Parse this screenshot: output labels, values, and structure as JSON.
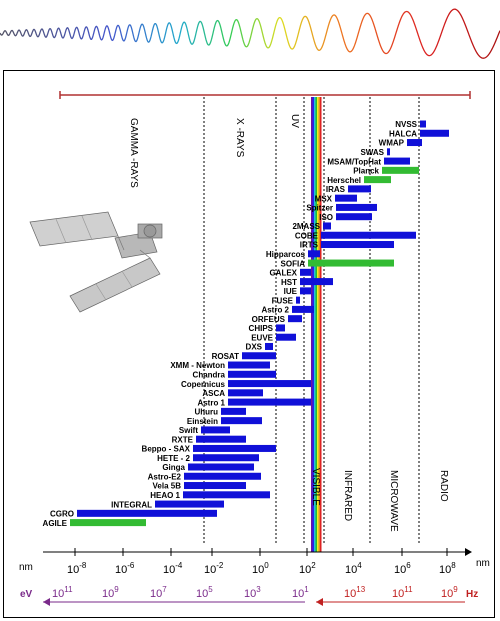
{
  "regions": {
    "gamma": "GAMMA -RAYS",
    "xray": "X -RAYS",
    "uv": "UV",
    "visible": "VISIBLE",
    "infrared": "INFRARED",
    "microwave": "MICROWAVE",
    "radio": "RADIO"
  },
  "missions": [
    {
      "name": "NVSS",
      "kind": "blue"
    },
    {
      "name": "HALCA",
      "kind": "blue"
    },
    {
      "name": "WMAP",
      "kind": "blue"
    },
    {
      "name": "SWAS",
      "kind": "blue"
    },
    {
      "name": "MSAM/TopHat",
      "kind": "blue"
    },
    {
      "name": "Planck",
      "kind": "green"
    },
    {
      "name": "Herschel",
      "kind": "green"
    },
    {
      "name": "IRAS",
      "kind": "blue"
    },
    {
      "name": "MSX",
      "kind": "blue"
    },
    {
      "name": "Spitzer",
      "kind": "blue"
    },
    {
      "name": "ISO",
      "kind": "blue"
    },
    {
      "name": "2MASS",
      "kind": "blue"
    },
    {
      "name": "COBE",
      "kind": "blue"
    },
    {
      "name": "IRTS",
      "kind": "blue"
    },
    {
      "name": "Hipparcos",
      "kind": "blue"
    },
    {
      "name": "SOFIA",
      "kind": "green"
    },
    {
      "name": "GALEX",
      "kind": "blue"
    },
    {
      "name": "HST",
      "kind": "blue"
    },
    {
      "name": "IUE",
      "kind": "blue"
    },
    {
      "name": "FUSE",
      "kind": "blue"
    },
    {
      "name": "Astro 2",
      "kind": "blue"
    },
    {
      "name": "ORFEUS",
      "kind": "blue"
    },
    {
      "name": "CHIPS",
      "kind": "blue"
    },
    {
      "name": "EUVE",
      "kind": "blue"
    },
    {
      "name": "DXS",
      "kind": "blue"
    },
    {
      "name": "ROSAT",
      "kind": "blue"
    },
    {
      "name": "XMM - Newton",
      "kind": "blue"
    },
    {
      "name": "Chandra",
      "kind": "blue"
    },
    {
      "name": "Copernicus",
      "kind": "blue"
    },
    {
      "name": "ASCA",
      "kind": "blue"
    },
    {
      "name": "Astro 1",
      "kind": "blue"
    },
    {
      "name": "Uhuru",
      "kind": "blue"
    },
    {
      "name": "Einstein",
      "kind": "blue"
    },
    {
      "name": "Swift",
      "kind": "blue"
    },
    {
      "name": "RXTE",
      "kind": "blue"
    },
    {
      "name": "Beppo - SAX",
      "kind": "blue"
    },
    {
      "name": "HETE - 2",
      "kind": "blue"
    },
    {
      "name": "Ginga",
      "kind": "blue"
    },
    {
      "name": "Astro-E2",
      "kind": "blue"
    },
    {
      "name": "Vela 5B",
      "kind": "blue"
    },
    {
      "name": "HEAO 1",
      "kind": "blue"
    },
    {
      "name": "INTEGRAL",
      "kind": "blue"
    },
    {
      "name": "CGRO",
      "kind": "blue"
    },
    {
      "name": "AGILE",
      "kind": "green"
    }
  ],
  "wavelength_axis": {
    "unit": "nm",
    "ticks": [
      {
        "base": "10",
        "exp": "-8"
      },
      {
        "base": "10",
        "exp": "-6"
      },
      {
        "base": "10",
        "exp": "-4"
      },
      {
        "base": "10",
        "exp": "-2"
      },
      {
        "base": "10",
        "exp": "0"
      },
      {
        "base": "10",
        "exp": "2"
      },
      {
        "base": "10",
        "exp": "4"
      },
      {
        "base": "10",
        "exp": "6"
      },
      {
        "base": "10",
        "exp": "8"
      }
    ],
    "end_unit": "nm"
  },
  "energy_axis": {
    "unit": "eV",
    "ticks": [
      {
        "base": "10",
        "exp": "11"
      },
      {
        "base": "10",
        "exp": "9"
      },
      {
        "base": "10",
        "exp": "7"
      },
      {
        "base": "10",
        "exp": "5"
      },
      {
        "base": "10",
        "exp": "3"
      },
      {
        "base": "10",
        "exp": "1"
      }
    ]
  },
  "frequency_axis": {
    "unit": "Hz",
    "ticks": [
      {
        "base": "10",
        "exp": "13"
      },
      {
        "base": "10",
        "exp": "11"
      },
      {
        "base": "10",
        "exp": "9"
      }
    ]
  },
  "colors": {
    "blue_bar": "#1010d8",
    "green_bar": "#33bb33",
    "top_scale": "#b03030",
    "wavelength_tick": "#000000",
    "energy": "#7a2a8a",
    "frequency": "#c02020"
  }
}
